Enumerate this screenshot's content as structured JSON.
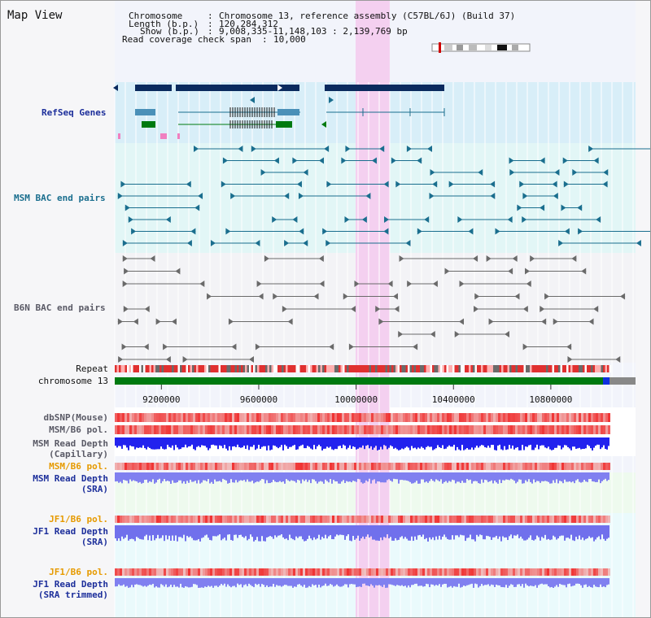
{
  "title": "Map View",
  "info": {
    "chromosome_key": "Chromosome",
    "chromosome_val": "Chromosome 13, reference assembly (C57BL/6J) (Build 37)",
    "length_key": "Length (b.p.)",
    "length_val": "120,284,312",
    "show_key": "Show (b.p.)",
    "show_val": "9,008,335-11,148,103 : 2,139,769 bp",
    "span_key": "Read coverage check span",
    "span_val": "10,000"
  },
  "labels": {
    "refseq": "RefSeq Genes",
    "msm_bac": "MSM BAC end pairs",
    "b6n_bac": "B6N BAC end pairs",
    "repeat": "Repeat",
    "chromosome": "chromosome 13",
    "dbsnp": "dbSNP(Mouse)",
    "msm_pol": "MSM/B6 pol.",
    "msm_depth_cap_1": "MSM Read Depth",
    "msm_depth_cap_2": "(Capillary)",
    "msm_pol_2": "MSM/B6 pol.",
    "msm_depth_sra_1": "MSM Read Depth",
    "msm_depth_sra_2": "(SRA)",
    "jf1_pol": "JF1/B6 pol.",
    "jf1_depth_1": "JF1 Read Depth",
    "jf1_depth_2": "(SRA)",
    "jf1_pol_2": "JF1/B6 pol.",
    "jf1_trim_1": "JF1 Read Depth",
    "jf1_trim_2": "(SRA trimmed)"
  },
  "axis": {
    "ticks": [
      "9200000",
      "9600000",
      "10000000",
      "10400000",
      "10800000"
    ],
    "tick_values": [
      9200000,
      9600000,
      10000000,
      10400000,
      10800000
    ],
    "range_start": 9008335,
    "range_end": 11148103
  },
  "highlight": {
    "start": 9998000,
    "end": 10138000,
    "color": "#f4d0f0"
  },
  "colors": {
    "gene_dark": "#0a2a5e",
    "gene_mid": "#4a90b8",
    "gene_green": "#007a10",
    "teal": "#1a6e8e",
    "grey": "#6a6a6a",
    "chrom_green": "#007a10",
    "chrom_blue": "#1030e0",
    "depth_blue": "#2222ee",
    "depth_light": "#8080f0",
    "snp_red": "#ee4444"
  }
}
